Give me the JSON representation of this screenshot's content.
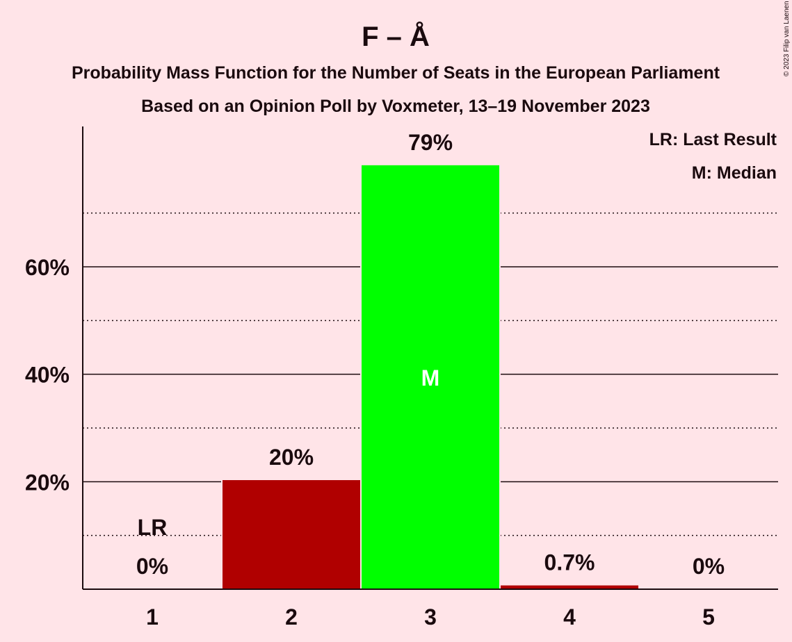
{
  "chart_data": {
    "type": "bar",
    "title": "F – Å",
    "subtitle_1": "Probability Mass Function for the Number of Seats in the European Parliament",
    "subtitle_2": "Based on an Opinion Poll by Voxmeter, 13–19 November 2023",
    "categories": [
      "1",
      "2",
      "3",
      "4",
      "5"
    ],
    "values": [
      0,
      20.3,
      78.9,
      0.7,
      0
    ],
    "value_labels": [
      "0%",
      "20%",
      "79%",
      "0.7%",
      "0%"
    ],
    "bar_colors": [
      "#b00000",
      "#b00000",
      "#00ff00",
      "#b00000",
      "#b00000"
    ],
    "ylim": [
      0,
      86
    ],
    "y_major_ticks": [
      20,
      40,
      60
    ],
    "y_major_tick_labels": [
      "20%",
      "40%",
      "60%"
    ],
    "y_minor_gridlines": [
      10,
      30,
      50,
      70
    ],
    "last_result_index": 0,
    "last_result_marker": "LR",
    "median_index": 2,
    "median_marker": "M",
    "legend": [
      "LR: Last Result",
      "M: Median"
    ],
    "legend_position": "top-right",
    "grid": true
  },
  "copyright": "© 2023 Filip van Laenen"
}
